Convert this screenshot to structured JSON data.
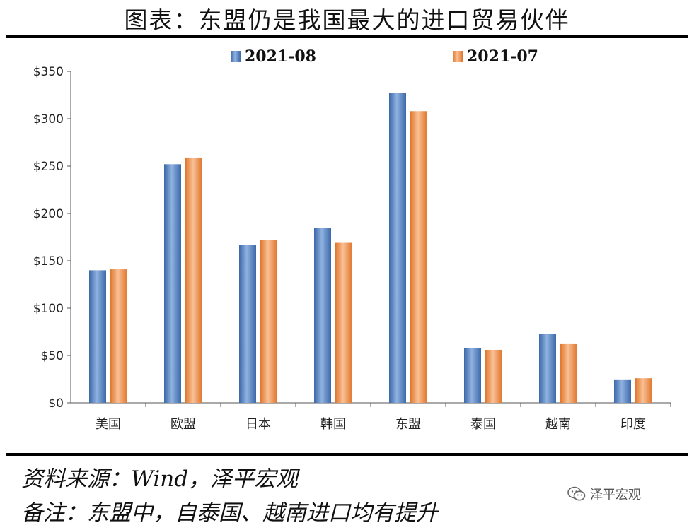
{
  "page": {
    "title": "图表：东盟仍是我国最大的进口贸易伙伴",
    "source_text": "资料来源：Wind，泽平宏观",
    "note_text": "备注：东盟中，自泰国、越南进口均有提升",
    "watermark_text": "泽平宏观",
    "watermark_icon": "wechat-icon"
  },
  "chart_data": {
    "type": "bar",
    "title": "",
    "xlabel": "",
    "ylabel": "",
    "categories": [
      "美国",
      "欧盟",
      "日本",
      "韩国",
      "东盟",
      "泰国",
      "越南",
      "印度"
    ],
    "series": [
      {
        "name": "2021-08",
        "values": [
          140,
          252,
          167,
          185,
          327,
          58,
          73,
          24
        ],
        "color": "#4f7fbf"
      },
      {
        "name": "2021-07",
        "values": [
          141,
          259,
          172,
          169,
          308,
          56,
          62,
          26
        ],
        "color": "#ed8b4a"
      }
    ],
    "ylim": [
      0,
      350
    ],
    "yticks": [
      0,
      50,
      100,
      150,
      200,
      250,
      300,
      350
    ],
    "ytick_labels": [
      "$0",
      "$50",
      "$100",
      "$150",
      "$200",
      "$250",
      "$300",
      "$350"
    ],
    "grid": false,
    "legend_position": "top-center"
  }
}
